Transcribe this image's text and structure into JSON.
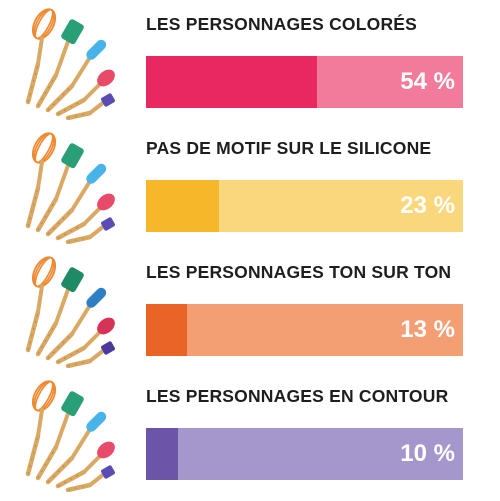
{
  "chart_data": {
    "type": "bar",
    "orientation": "horizontal",
    "categories": [
      "LES PERSONNAGES COLORÉS",
      "PAS DE MOTIF SUR LE SILICONE",
      "LES PERSONNAGES TON SUR TON",
      "LES PERSONNAGES EN CONTOUR"
    ],
    "values": [
      54,
      23,
      13,
      10
    ],
    "value_labels": [
      "54 %",
      "23 %",
      "13 %",
      "10 %"
    ],
    "xlim": [
      0,
      100
    ],
    "colors": [
      {
        "fill": "#e8285e",
        "track": "#f27a9a"
      },
      {
        "fill": "#f6b82a",
        "track": "#fad77c"
      },
      {
        "fill": "#ea6427",
        "track": "#f49e74"
      },
      {
        "fill": "#6b55a8",
        "track": "#a596cc"
      }
    ]
  },
  "thumbnails": [
    {
      "icon": "utensil-set-characters-icon",
      "heads": [
        "#ef8a33",
        "#2a9e77",
        "#47b3e8",
        "#e84a6a",
        "#5b4bb5"
      ]
    },
    {
      "icon": "utensil-set-plain-icon",
      "heads": [
        "#ef8a33",
        "#2a9e77",
        "#47b3e8",
        "#e84a6a",
        "#5b4bb5"
      ]
    },
    {
      "icon": "utensil-set-tone-on-tone-icon",
      "heads": [
        "#ef8a33",
        "#1f8a66",
        "#2f7fc4",
        "#d63456",
        "#4a3aa0"
      ]
    },
    {
      "icon": "utensil-set-outline-icon",
      "heads": [
        "#ef8a33",
        "#2a9e77",
        "#47b3e8",
        "#e84a6a",
        "#5b4bb5"
      ]
    }
  ]
}
